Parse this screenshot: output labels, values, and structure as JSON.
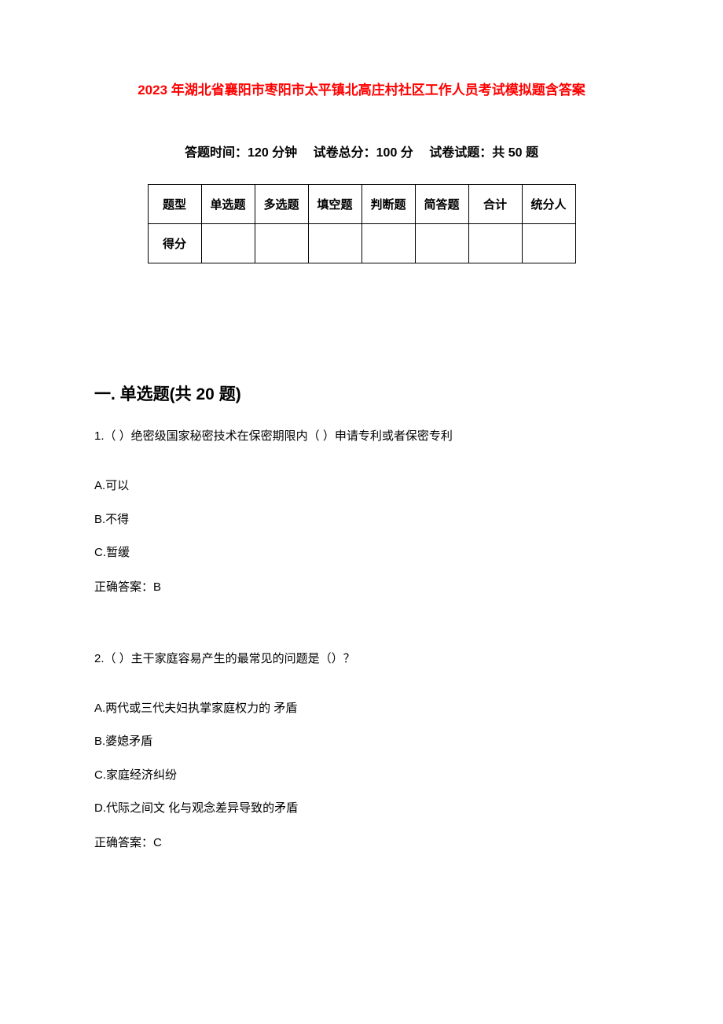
{
  "title": "2023 年湖北省襄阳市枣阳市太平镇北高庄村社区工作人员考试模拟题含答案",
  "exam_info": {
    "time_label": "答题时间：",
    "time_value": "120 分钟",
    "total_label": "试卷总分：",
    "total_value": "100 分",
    "count_label": "试卷试题：",
    "count_value": "共 50 题"
  },
  "score_table": {
    "headers": [
      "题型",
      "单选题",
      "多选题",
      "填空题",
      "判断题",
      "简答题",
      "合计",
      "统分人"
    ],
    "row_label": "得分"
  },
  "section1": {
    "heading": "一. 单选题(共 20 题)",
    "questions": [
      {
        "number": "1.",
        "text": "（ ）绝密级国家秘密技术在保密期限内（  ）申请专利或者保密专利",
        "options": [
          "A.可以",
          "B.不得",
          "C.暂缓"
        ],
        "answer_label": "正确答案：",
        "answer_value": "B"
      },
      {
        "number": "2.",
        "text": "（ ）主干家庭容易产生的最常见的问题是（）？",
        "options": [
          "A.两代或三代夫妇执掌家庭权力的  矛盾",
          "B.婆媳矛盾",
          "C.家庭经济纠纷",
          "D.代际之间文  化与观念差异导致的矛盾"
        ],
        "answer_label": "正确答案：",
        "answer_value": "C"
      }
    ]
  },
  "colors": {
    "title_color": "#ff0000",
    "text_color": "#000000",
    "background": "#ffffff",
    "border_color": "#000000"
  }
}
